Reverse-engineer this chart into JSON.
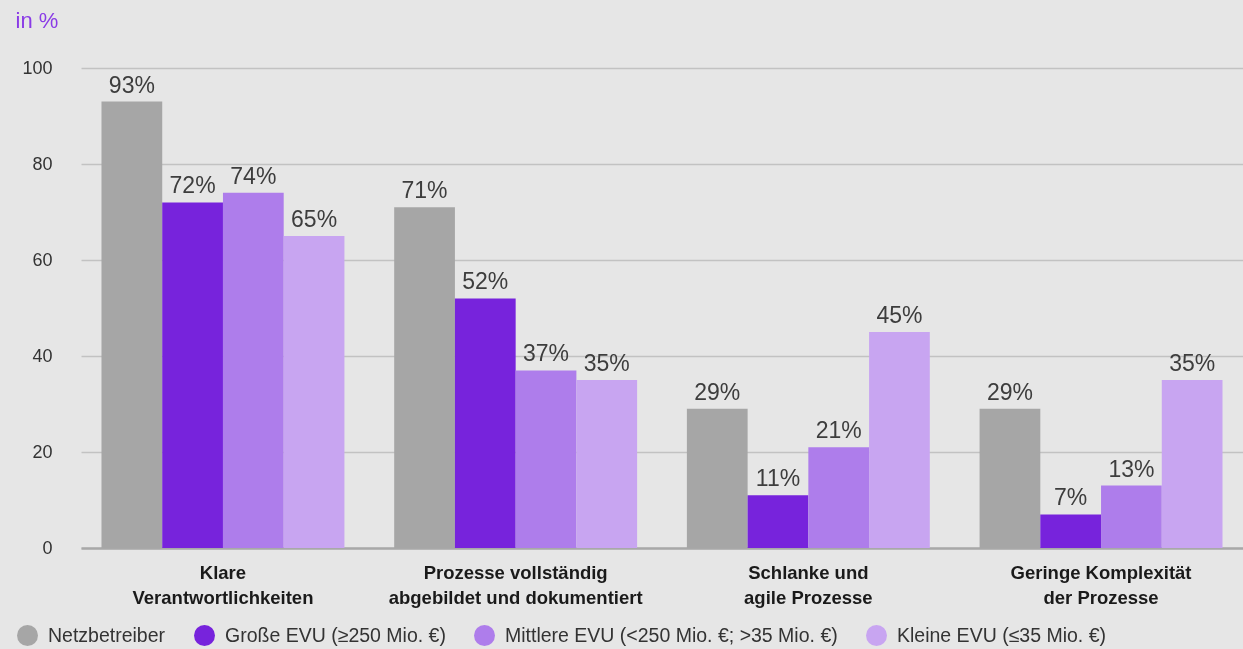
{
  "chart_data": {
    "type": "bar",
    "ylabel": "in %",
    "categories": [
      "Klare\nVerantwortlichkeiten",
      "Prozesse vollständig\nabgebildet und dokumentiert",
      "Schlanke und\nagile Prozesse",
      "Geringe Komplexität\nder Prozesse"
    ],
    "series": [
      {
        "name": "Netzbetreiber",
        "color": "#a6a6a6",
        "values": [
          93,
          71,
          29,
          29
        ],
        "value_labels": [
          "93%",
          "71%",
          "29%",
          "29%"
        ]
      },
      {
        "name": "Große EVU (≥250 Mio. €)",
        "color": "#7723dc",
        "values": [
          72,
          52,
          11,
          7
        ],
        "value_labels": [
          "72%",
          "52%",
          "11%",
          "7%"
        ]
      },
      {
        "name": "Mittlere EVU (<250 Mio. €; >35 Mio. €)",
        "color": "#ae7deb",
        "values": [
          74,
          37,
          21,
          13
        ],
        "value_labels": [
          "74%",
          "37%",
          "21%",
          "13%"
        ]
      },
      {
        "name": "Kleine EVU (≤35 Mio. €)",
        "color": "#c8a5f1",
        "values": [
          65,
          35,
          45,
          35
        ],
        "value_labels": [
          "65%",
          "35%",
          "45%",
          "35%"
        ]
      }
    ],
    "ylim": [
      0,
      100
    ],
    "yticks": [
      0,
      20,
      40,
      60,
      80,
      100
    ],
    "grid": "y",
    "legend": "bottom"
  }
}
